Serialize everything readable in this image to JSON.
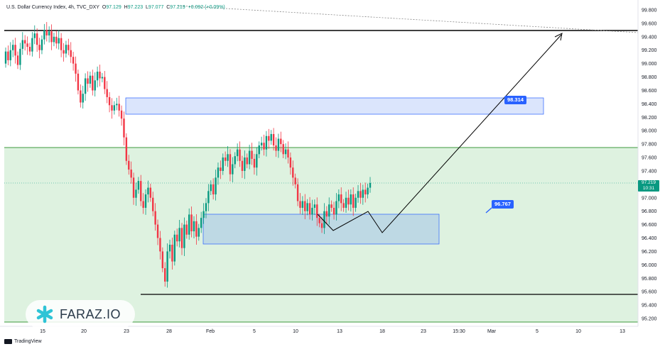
{
  "chart_data": {
    "type": "candlestick",
    "title": "U.S. Dollar Currency Index, 4h, TVC_DXY",
    "ohlc_readout": {
      "o_label": "O",
      "o": "97.129",
      "h_label": "H",
      "h": "97.223",
      "l_label": "L",
      "l": "97.077",
      "c_label": "C",
      "c": "97.219",
      "change": "+0.092 (+0.09%)"
    },
    "y_ticks": [
      "99.800",
      "99.600",
      "99.400",
      "99.200",
      "99.000",
      "98.800",
      "98.600",
      "98.400",
      "98.200",
      "98.000",
      "97.800",
      "97.600",
      "97.400",
      "97.200",
      "97.000",
      "96.800",
      "96.600",
      "96.400",
      "96.200",
      "96.000",
      "95.800",
      "95.600",
      "95.400",
      "95.200"
    ],
    "x_ticks": [
      "15",
      "20",
      "23",
      "28",
      "Feb",
      "5",
      "10",
      "13",
      "18",
      "23",
      "15:30",
      "Mar",
      "5",
      "10",
      "13"
    ],
    "ylim": [
      95.15,
      99.95
    ],
    "current_price": "97.219",
    "countdown": "10:31",
    "levels": [
      99.48,
      97.75,
      95.56
    ],
    "zones": [
      {
        "label": "98.314",
        "top": 98.5,
        "bottom": 98.25
      },
      {
        "label": "96.767",
        "top": 96.75,
        "bottom": 96.3
      }
    ],
    "projection_path": [
      [
        0,
        96.76
      ],
      [
        5,
        96.5
      ],
      [
        11,
        96.8
      ],
      [
        16,
        96.48
      ],
      [
        41,
        99.42
      ]
    ],
    "candles": [
      99.18,
      99.05,
      99.2,
      99.28,
      99.12,
      98.98,
      99.22,
      99.35,
      99.3,
      99.25,
      99.18,
      99.38,
      99.45,
      99.28,
      99.2,
      99.36,
      99.5,
      99.42,
      99.48,
      99.32,
      99.4,
      99.3,
      99.38,
      99.2,
      99.15,
      99.28,
      99.2,
      99.1,
      99.0,
      98.85,
      98.6,
      98.42,
      98.55,
      98.78,
      98.7,
      98.82,
      98.6,
      98.75,
      98.88,
      98.78,
      98.8,
      98.62,
      98.5,
      98.38,
      98.3,
      98.38,
      98.4,
      98.3,
      98.18,
      97.9,
      97.55,
      97.42,
      97.3,
      97.0,
      97.12,
      97.25,
      96.95,
      96.85,
      97.05,
      97.15,
      97.0,
      96.8,
      96.6,
      96.4,
      96.2,
      95.95,
      95.75,
      96.2,
      96.3,
      96.05,
      96.45,
      96.35,
      96.55,
      96.25,
      96.6,
      96.45,
      96.75,
      96.5,
      96.65,
      96.42,
      96.55,
      96.7,
      96.8,
      96.92,
      97.1,
      97.2,
      97.05,
      97.3,
      97.45,
      97.4,
      97.6,
      97.55,
      97.65,
      97.35,
      97.5,
      97.62,
      97.72,
      97.55,
      97.4,
      97.6,
      97.5,
      97.7,
      97.58,
      97.45,
      97.65,
      97.78,
      97.82,
      97.72,
      97.92,
      97.85,
      97.95,
      97.78,
      97.7,
      97.88,
      97.8,
      97.65,
      97.72,
      97.6,
      97.45,
      97.3,
      97.2,
      96.95,
      96.85,
      96.95,
      96.8,
      96.92,
      96.75,
      96.85,
      96.9,
      96.7,
      96.62,
      96.55,
      96.8,
      96.72,
      96.9,
      96.85,
      96.75,
      96.95,
      97.05,
      96.92,
      96.85,
      97.0,
      96.9,
      97.05,
      96.85,
      97.0,
      97.1,
      97.0,
      97.12,
      97.05,
      97.15,
      97.22
    ]
  },
  "branding": {
    "logo_text": "FARAZ.IO",
    "footer": "TradingView"
  }
}
